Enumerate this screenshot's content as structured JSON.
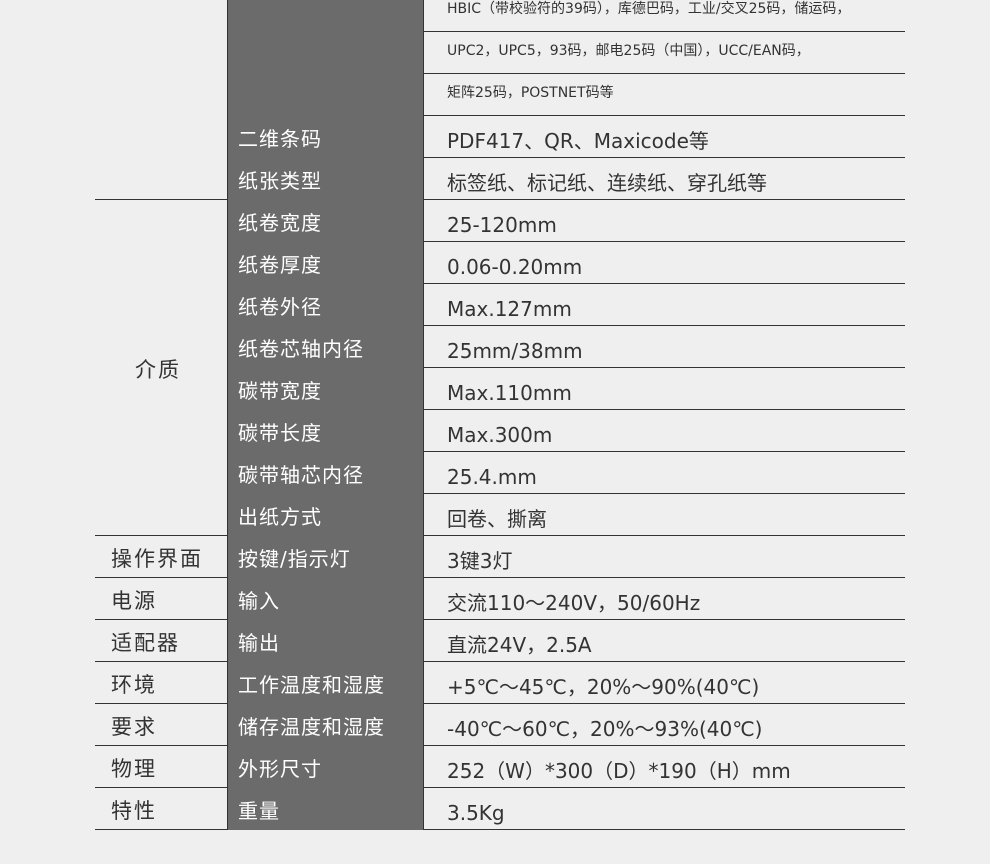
{
  "rows": [
    {
      "label": "",
      "value": "HBIC（带校验符的39码），库德巴码，工业/交叉25码，储运码，",
      "small": true
    },
    {
      "label": "",
      "value": "UPC2，UPC5，93码，邮电25码（中国），UCC/EAN码，",
      "small": true
    },
    {
      "label": "",
      "value": "矩阵25码，POSTNET码等",
      "small": true
    },
    {
      "label": "二维条码",
      "value": "PDF417、QR、Maxicode等"
    },
    {
      "label": "纸张类型",
      "value": "标签纸、标记纸、连续纸、穿孔纸等"
    },
    {
      "label": "纸卷宽度",
      "value": "25-120mm"
    },
    {
      "label": "纸卷厚度",
      "value": "0.06-0.20mm"
    },
    {
      "label": "纸卷外径",
      "value": "Max.127mm"
    },
    {
      "label": "纸卷芯轴内径",
      "value": "25mm/38mm"
    },
    {
      "label": "碳带宽度",
      "value": "Max.110mm"
    },
    {
      "label": "碳带长度",
      "value": "Max.300m"
    },
    {
      "label": "碳带轴芯内径",
      "value": "25.4.mm"
    },
    {
      "label": "出纸方式",
      "value": "回卷、撕离"
    },
    {
      "label": "按键/指示灯",
      "value": "3键3灯"
    },
    {
      "label": "输入",
      "value": "交流110～240V，50/60Hz"
    },
    {
      "label": "输出",
      "value": "直流24V，2.5A"
    },
    {
      "label": "工作温度和湿度",
      "value": "+5℃～45℃，20%～90%(40℃)"
    },
    {
      "label": "储存温度和湿度",
      "value": "-40℃～60℃，20%～93%(40℃)"
    },
    {
      "label": "外形尺寸",
      "value": "252（W）*300（D）*190（H）mm"
    },
    {
      "label": "重量",
      "value": "3.5Kg"
    }
  ],
  "categories": [
    {
      "label": "介质",
      "start": 5,
      "end": 12
    },
    {
      "label": "操作界面",
      "start": 13,
      "end": 13
    },
    {
      "label": "电源",
      "start": 14,
      "end": 14
    },
    {
      "label": "适配器",
      "start": 15,
      "end": 15
    },
    {
      "label": "环境",
      "start": 16,
      "end": 16
    },
    {
      "label": "要求",
      "start": 17,
      "end": 17
    },
    {
      "label": "物理",
      "start": 18,
      "end": 18
    },
    {
      "label": "特性",
      "start": 19,
      "end": 19
    }
  ],
  "colors": {
    "background": "#efefef",
    "label_column": "#6b6b6b",
    "text": "#333333",
    "rule": "#333333"
  }
}
